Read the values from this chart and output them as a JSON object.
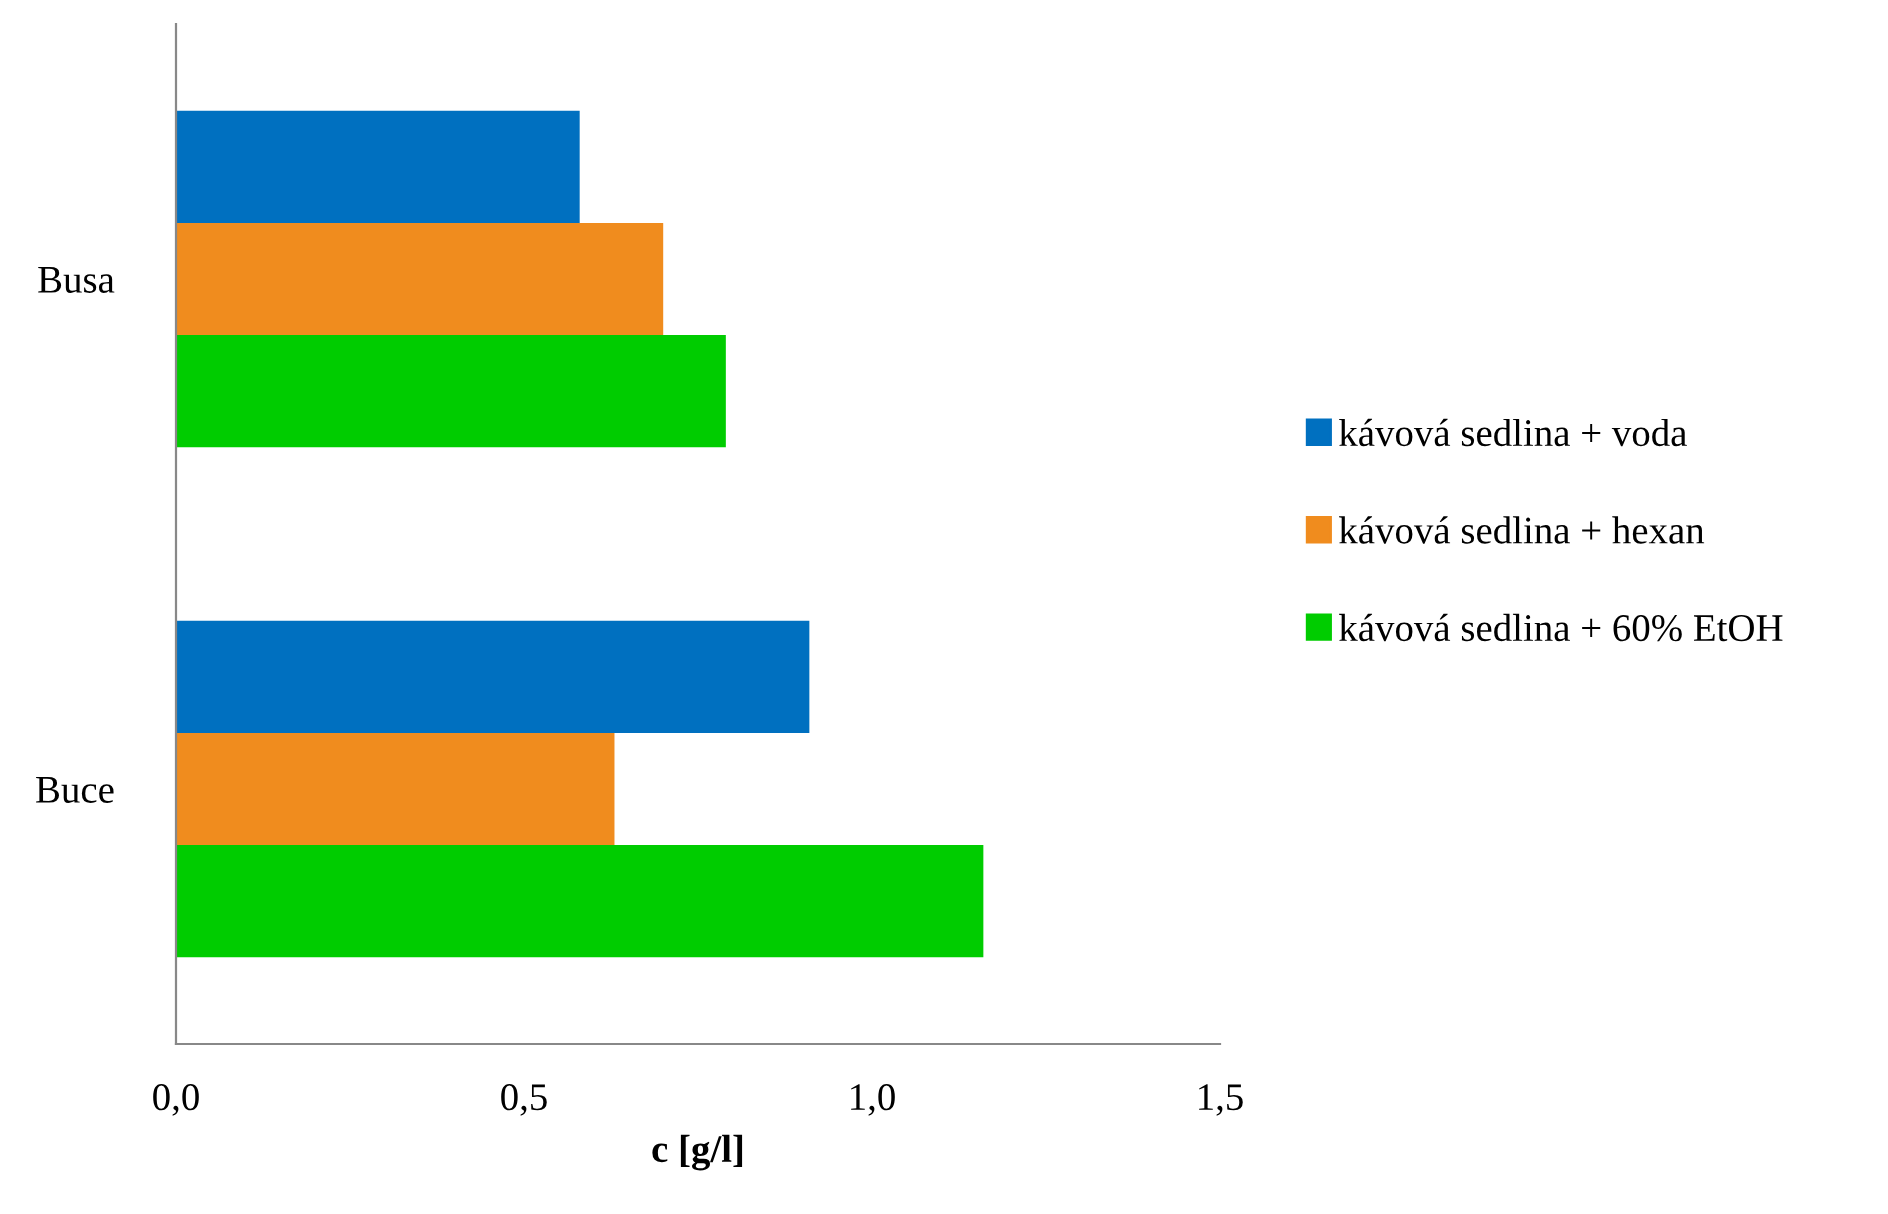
{
  "chart_data": {
    "type": "bar",
    "orientation": "horizontal",
    "categories": [
      "Busa",
      "Buce"
    ],
    "xlabel": "c [g/l]",
    "series": [
      {
        "name": "kávová sedlina + voda",
        "color": "#0070c0",
        "values": [
          0.58,
          0.91
        ]
      },
      {
        "name": "kávová sedlina + hexan",
        "color": "#f08c1e",
        "values": [
          0.7,
          0.63
        ]
      },
      {
        "name": "kávová sedlina + 60% EtOH",
        "color": "#00cc00",
        "values": [
          0.79,
          1.16
        ]
      }
    ],
    "xlim": [
      0,
      1.5
    ],
    "xticks": [
      {
        "value": 0,
        "label": "0,0"
      },
      {
        "value": 0.5,
        "label": "0,5"
      },
      {
        "value": 1.0,
        "label": "1,0"
      },
      {
        "value": 1.5,
        "label": "1,5"
      }
    ],
    "grid": false,
    "legend": "right"
  }
}
